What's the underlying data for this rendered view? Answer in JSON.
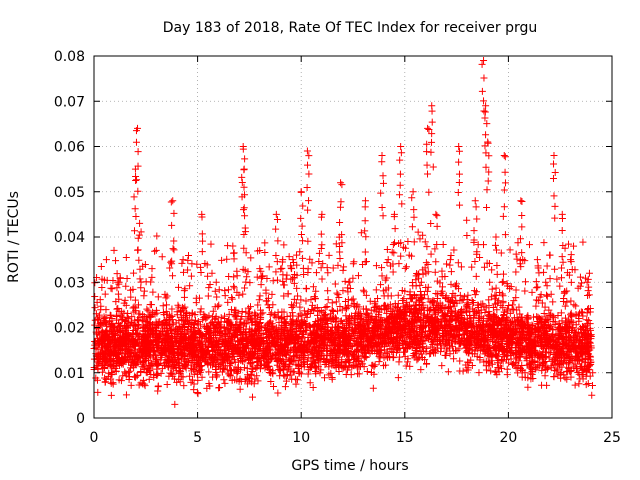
{
  "chart_data": {
    "type": "scatter",
    "title": "Day 183 of 2018, Rate Of TEC Index for receiver prgu",
    "xlabel": "GPS time / hours",
    "ylabel": "ROTI / TECUs",
    "xlim": [
      0,
      25
    ],
    "ylim": [
      0,
      0.08
    ],
    "x_ticks": [
      0,
      5,
      10,
      15,
      20,
      25
    ],
    "y_ticks": [
      0,
      0.01,
      0.02,
      0.03,
      0.04,
      0.05,
      0.06,
      0.07,
      0.08
    ],
    "x_tick_labels": [
      "0",
      "5",
      "10",
      "15",
      "20",
      "25"
    ],
    "y_tick_labels": [
      "0",
      "0.01",
      "0.02",
      "0.03",
      "0.04",
      "0.05",
      "0.06",
      "0.07",
      "0.08"
    ],
    "grid": true,
    "marker": "+",
    "color": "#ff0000",
    "data_range_x": [
      0,
      24
    ],
    "typical_band": [
      0.008,
      0.03
    ],
    "series": [
      {
        "name": "ROTI",
        "x": [
          0.2,
          0.5,
          0.9,
          1.2,
          1.5,
          2.0,
          2.1,
          2.2,
          2.4,
          2.8,
          3.1,
          3.5,
          3.8,
          3.9,
          4.3,
          4.8,
          5.2,
          5.5,
          5.9,
          6.3,
          6.7,
          7.0,
          7.2,
          7.25,
          7.3,
          7.6,
          8.0,
          8.4,
          8.8,
          9.2,
          9.6,
          10.0,
          10.3,
          10.7,
          11.0,
          11.5,
          11.9,
          12.3,
          12.7,
          13.1,
          13.5,
          13.9,
          14.2,
          14.5,
          14.8,
          15.0,
          15.4,
          15.8,
          16.1,
          16.3,
          16.5,
          16.8,
          17.2,
          17.6,
          18.0,
          18.4,
          18.8,
          18.9,
          19.0,
          19.4,
          19.8,
          20.2,
          20.6,
          21.0,
          21.4,
          21.8,
          22.2,
          22.6,
          23.0,
          23.4,
          23.8,
          24.0
        ],
        "y": [
          0.014,
          0.022,
          0.018,
          0.03,
          0.026,
          0.055,
          0.064,
          0.043,
          0.02,
          0.033,
          0.016,
          0.025,
          0.048,
          0.003,
          0.035,
          0.02,
          0.045,
          0.012,
          0.03,
          0.022,
          0.038,
          0.02,
          0.06,
          0.055,
          0.042,
          0.018,
          0.033,
          0.025,
          0.045,
          0.02,
          0.035,
          0.05,
          0.059,
          0.028,
          0.045,
          0.022,
          0.052,
          0.03,
          0.025,
          0.048,
          0.02,
          0.058,
          0.035,
          0.045,
          0.06,
          0.028,
          0.05,
          0.03,
          0.064,
          0.069,
          0.045,
          0.028,
          0.035,
          0.06,
          0.025,
          0.048,
          0.079,
          0.069,
          0.061,
          0.04,
          0.058,
          0.025,
          0.048,
          0.02,
          0.035,
          0.03,
          0.058,
          0.045,
          0.035,
          0.022,
          0.03,
          0.018
        ]
      }
    ]
  }
}
